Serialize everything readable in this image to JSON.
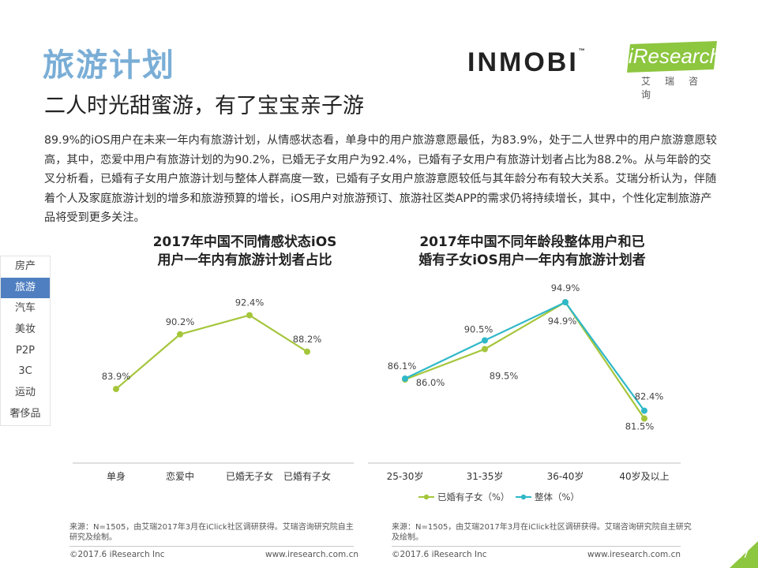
{
  "header": {
    "title": "旅游计划",
    "subtitle": "二人时光甜蜜游，有了宝宝亲子游",
    "body": "89.9%的iOS用户在未来一年内有旅游计划，从情感状态看，单身中的用户旅游意愿最低，为83.9%，处于二人世界中的用户旅游意愿较高，其中，恋爱中用户有旅游计划的为90.2%，已婚无子女用户为92.4%，已婚有子女用户有旅游计划者占比为88.2%。从与年龄的交叉分析看，已婚有子女用户旅游计划与整体人群高度一致，已婚有子女用户旅游意愿较低与其年龄分布有较大关系。艾瑞分析认为，伴随着个人及家庭旅游计划的增多和旅游预算的增长，iOS用户对旅游预订、旅游社区类APP的需求仍将持续增长，其中，个性化定制旅游产品将受到更多关注。"
  },
  "logos": {
    "inmobi": "INMOBI",
    "iresearch": "iResearch",
    "iresearch_cn": "艾瑞咨询"
  },
  "sidebar": {
    "items": [
      {
        "label": "房产",
        "active": false
      },
      {
        "label": "旅游",
        "active": true
      },
      {
        "label": "汽车",
        "active": false
      },
      {
        "label": "美妆",
        "active": false
      },
      {
        "label": "P2P",
        "active": false
      },
      {
        "label": "3C",
        "active": false
      },
      {
        "label": "运动",
        "active": false
      },
      {
        "label": "奢侈品",
        "active": false
      }
    ]
  },
  "chart_data": [
    {
      "type": "line",
      "title_line1": "2017年中国不同情感状态iOS",
      "title_line2": "用户一年内有旅游计划者占比",
      "categories": [
        "单身",
        "恋爱中",
        "已婚无子女",
        "已婚有子女"
      ],
      "series": [
        {
          "values": [
            83.9,
            90.2,
            92.4,
            88.2
          ],
          "color": "#a5c63b"
        }
      ],
      "data_labels": [
        "83.9%",
        "90.2%",
        "92.4%",
        "88.2%"
      ],
      "ylim": [
        76,
        96
      ],
      "grid": false,
      "source": "来源：N=1505，由艾瑞2017年3月在iClick社区调研获得。艾瑞咨询研究院自主研究及绘制。"
    },
    {
      "type": "line",
      "title_line1": "2017年中国不同年龄段整体用户和已",
      "title_line2": "婚有子女iOS用户一年内有旅游计划者",
      "categories": [
        "25-30岁",
        "31-35岁",
        "36-40岁",
        "40岁及以上"
      ],
      "series": [
        {
          "name": "已婚有子女（%）",
          "values": [
            86.0,
            89.5,
            94.9,
            81.5
          ],
          "color": "#a5c63b",
          "labels": [
            "86.0%",
            "89.5%",
            "94.9%",
            "81.5%"
          ]
        },
        {
          "name": "整体（%）",
          "values": [
            86.1,
            90.5,
            94.9,
            82.4
          ],
          "color": "#2fb8c8",
          "labels": [
            "86.1%",
            "90.5%",
            "94.9%",
            "82.4%"
          ]
        }
      ],
      "ylim": [
        77,
        97
      ],
      "grid": false,
      "legend": "bottom",
      "source": "来源：N=1505，由艾瑞2017年3月在iClick社区调研获得。艾瑞咨询研究院自主研究及绘制。"
    }
  ],
  "footer": {
    "left_copyright": "©2017.6 iResearch Inc",
    "left_url": "www.iresearch.com.cn",
    "right_copyright": "©2017.6 iResearch Inc",
    "right_url": "www.iresearch.com.cn",
    "page_number": "17"
  },
  "colors": {
    "title_blue": "#7aaed6",
    "nav_active": "#4f7fc0",
    "series_green": "#a5c63b",
    "series_teal": "#2fb8c8",
    "logo_green": "#8dc63f"
  }
}
